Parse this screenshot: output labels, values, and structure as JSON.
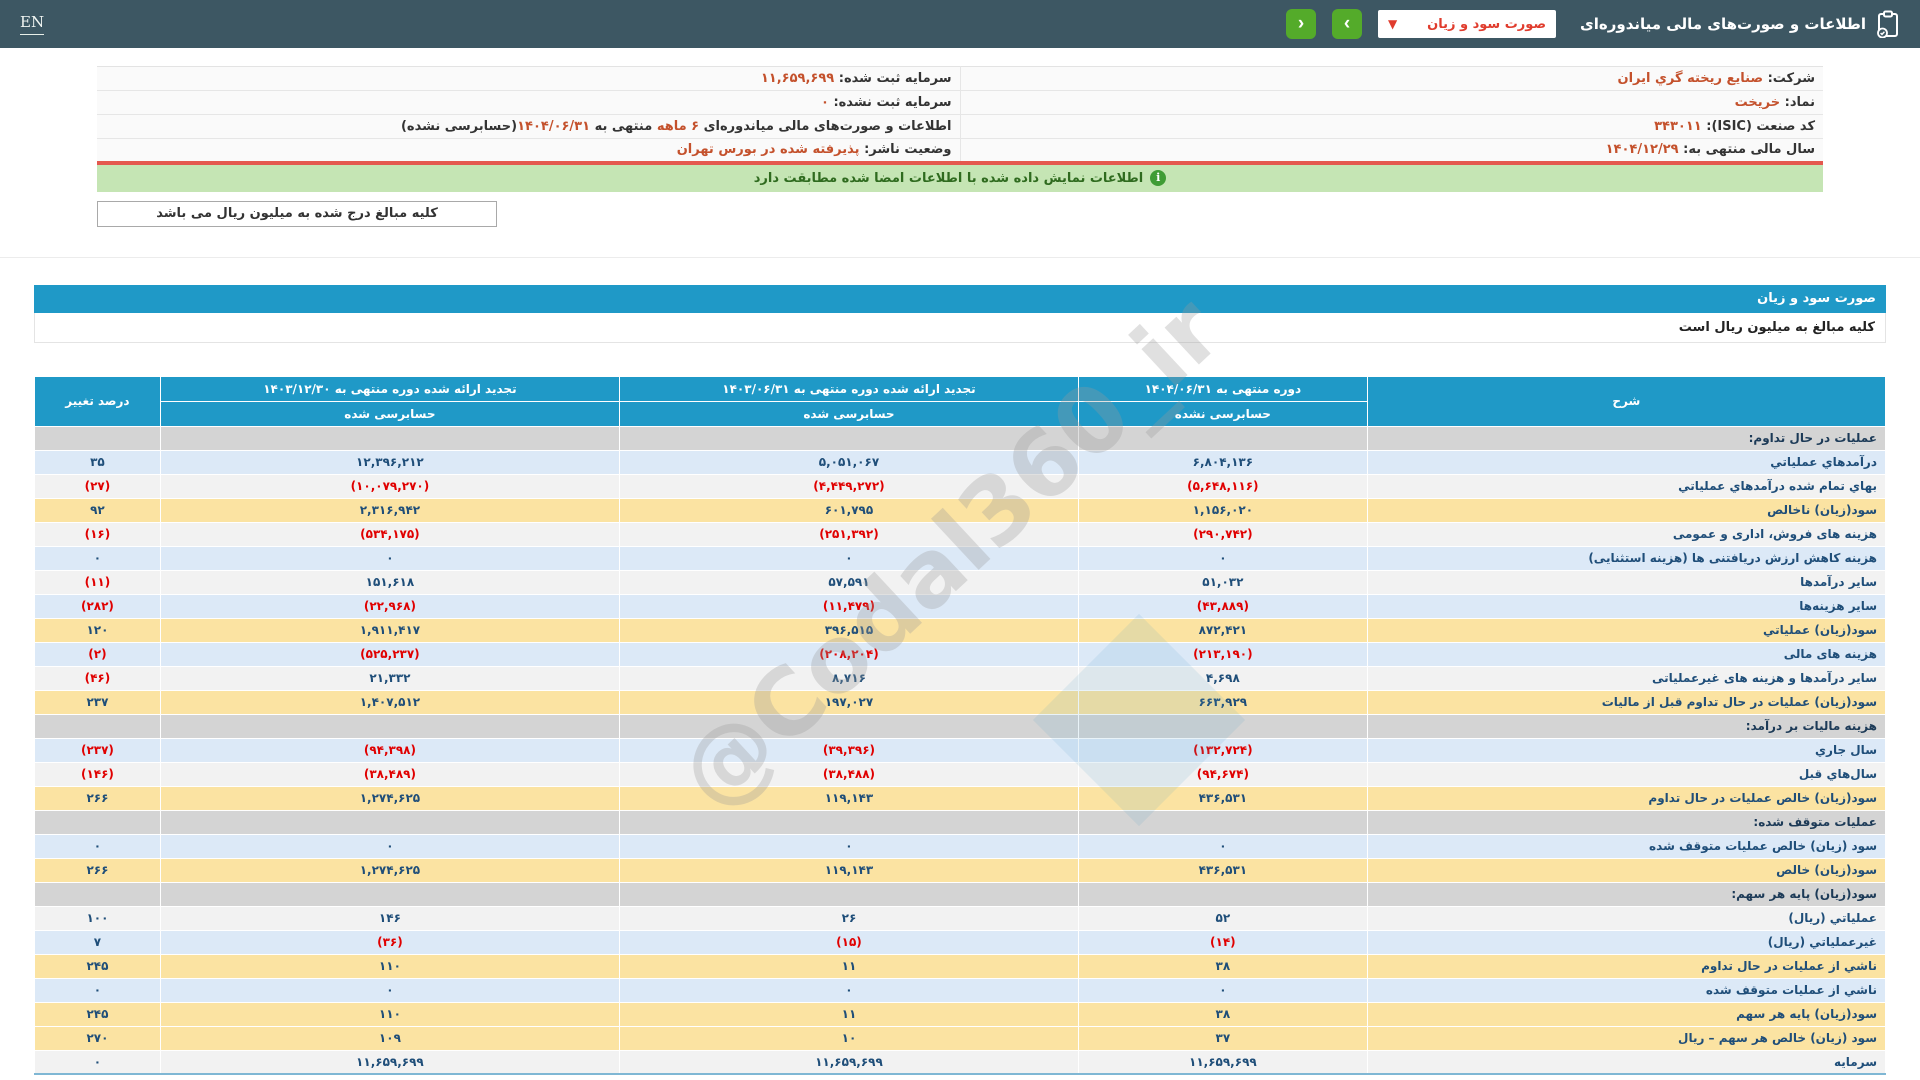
{
  "colors": {
    "topbar": "#3d5763",
    "nav_button_green": "#54ab2a",
    "dropdown_red": "#e03c2d",
    "info_value_orange": "#c4512c",
    "accent_blue": "#1f99c7",
    "row_blue": "#dce9f7",
    "row_white": "#f2f2f2",
    "row_yellow": "#fbe3a2",
    "row_section_gray": "#d4d4d4",
    "number_navy": "#1f4e79",
    "negative_red": "#e00000",
    "signed_banner_green": "#c5e5b4",
    "red_divider": "#e4584e"
  },
  "topbar": {
    "en_label": "EN",
    "title": "اطلاعات و صورت‌های مالی میاندوره‌ای",
    "dropdown_value": "صورت سود و زیان",
    "chevron": "▼",
    "nav_next": "›",
    "nav_prev": "‹",
    "clipboard_icon": "clipboard-check-icon"
  },
  "info": {
    "rows": [
      {
        "r_label": "شرکت:",
        "r_value": "صنایع ریخته گري ایران",
        "l_label": "سرمایه ثبت شده:",
        "l_value": "۱۱,۶۵۹,۶۹۹"
      },
      {
        "r_label": "نماد:",
        "r_value": "خریخت",
        "l_label": "سرمایه ثبت نشده:",
        "l_value": "۰"
      },
      {
        "r_label": "کد صنعت (ISIC):",
        "r_value": "۳۴۳۰۱۱",
        "l_parts": {
          "p1": "اطلاعات و صورت‌های مالی میاندوره‌ای ",
          "hl1": "۶ ماهه",
          "p2": " منتهی به ",
          "hl2": "۱۴۰۴/۰۶/۳۱",
          "p3": "(حسابرسی نشده)"
        }
      },
      {
        "r_label": "سال مالی منتهی به:",
        "r_value": "۱۴۰۴/۱۲/۲۹",
        "l_label": "وضعیت ناشر:",
        "l_value": "پذیرفته شده در بورس تهران"
      }
    ],
    "signed_note": "اطلاعات نمایش داده شده با اطلاعات امضا شده مطابقت دارد",
    "info_icon": "i",
    "units_button": "کلیه مبالغ درج شده به میلیون ریال می باشد"
  },
  "statement": {
    "title": "صورت سود و زیان",
    "units_note": "کلیه مبالغ به میلیون ریال است",
    "watermark": "@Codal360_ir",
    "table": {
      "col_headers": {
        "desc": "شرح",
        "p1": {
          "l1": "دوره منتهی به ۱۴۰۴/۰۶/۳۱",
          "l2": "حسابرسی نشده"
        },
        "p2": {
          "l1": "تجدید ارائه شده دوره منتهی به ۱۴۰۳/۰۶/۳۱",
          "l2": "حسابرسی شده"
        },
        "p3": {
          "l1": "تجدید ارائه شده دوره منتهی به ۱۴۰۳/۱۲/۳۰",
          "l2": "حسابرسی شده"
        },
        "pct": "درصد تغییر"
      },
      "rows": [
        {
          "type": "section",
          "label": "عملیات در حال تداوم:"
        },
        {
          "type": "data",
          "style": "blue",
          "label": "درآمدهاي عملیاتي",
          "v": [
            "۶,۸۰۴,۱۳۶",
            "۵,۰۵۱,۰۶۷",
            "۱۲,۳۹۶,۲۱۲",
            "۳۵"
          ]
        },
        {
          "type": "data",
          "style": "white",
          "label": "بهاي تمام شده درآمدهاي عملیاتي",
          "v": [
            "(۵,۶۴۸,۱۱۶)",
            "(۴,۴۴۹,۲۷۲)",
            "(۱۰,۰۷۹,۲۷۰)",
            "(۲۷)"
          ]
        },
        {
          "type": "data",
          "style": "yellow",
          "label": "سود(زیان) ناخالص",
          "v": [
            "۱,۱۵۶,۰۲۰",
            "۶۰۱,۷۹۵",
            "۲,۳۱۶,۹۴۲",
            "۹۲"
          ]
        },
        {
          "type": "data",
          "style": "white",
          "label": "هزینه های فروش، اداری و عمومی",
          "v": [
            "(۲۹۰,۷۴۲)",
            "(۲۵۱,۳۹۲)",
            "(۵۳۴,۱۷۵)",
            "(۱۶)"
          ]
        },
        {
          "type": "data",
          "style": "blue",
          "label": "هزینه کاهش ارزش دریافتنی ها (هزینه استثنایی)",
          "v": [
            "۰",
            "۰",
            "۰",
            "۰"
          ]
        },
        {
          "type": "data",
          "style": "white",
          "label": "سایر درآمدها",
          "v": [
            "۵۱,۰۳۲",
            "۵۷,۵۹۱",
            "۱۵۱,۶۱۸",
            "(۱۱)"
          ]
        },
        {
          "type": "data",
          "style": "blue",
          "label": "سایر هزینه‌ها",
          "v": [
            "(۴۳,۸۸۹)",
            "(۱۱,۴۷۹)",
            "(۲۲,۹۶۸)",
            "(۲۸۲)"
          ]
        },
        {
          "type": "data",
          "style": "yellow",
          "label": "سود(زیان) عملیاتي",
          "v": [
            "۸۷۲,۴۲۱",
            "۳۹۶,۵۱۵",
            "۱,۹۱۱,۴۱۷",
            "۱۲۰"
          ]
        },
        {
          "type": "data",
          "style": "blue",
          "label": "هزینه های مالی",
          "v": [
            "(۲۱۳,۱۹۰)",
            "(۲۰۸,۲۰۴)",
            "(۵۲۵,۲۳۷)",
            "(۲)"
          ]
        },
        {
          "type": "data",
          "style": "white",
          "label": "سایر درآمدها و هزینه های غیرعملیاتی",
          "v": [
            "۴,۶۹۸",
            "۸,۷۱۶",
            "۲۱,۳۳۲",
            "(۴۶)"
          ]
        },
        {
          "type": "data",
          "style": "yellow",
          "label": "سود(زیان) عملیات در حال تداوم قبل از مالیات",
          "v": [
            "۶۶۳,۹۲۹",
            "۱۹۷,۰۲۷",
            "۱,۴۰۷,۵۱۲",
            "۲۳۷"
          ]
        },
        {
          "type": "section",
          "label": "هزینه مالیات بر درآمد:"
        },
        {
          "type": "data",
          "style": "blue",
          "label": "سال جاري",
          "v": [
            "(۱۳۲,۷۲۴)",
            "(۳۹,۳۹۶)",
            "(۹۴,۳۹۸)",
            "(۲۳۷)"
          ]
        },
        {
          "type": "data",
          "style": "white",
          "label": "سال‌هاي قبل",
          "v": [
            "(۹۴,۶۷۴)",
            "(۳۸,۴۸۸)",
            "(۳۸,۴۸۹)",
            "(۱۴۶)"
          ]
        },
        {
          "type": "data",
          "style": "yellow",
          "label": "سود(زیان) خالص عملیات در حال تداوم",
          "v": [
            "۴۳۶,۵۳۱",
            "۱۱۹,۱۴۳",
            "۱,۲۷۴,۶۲۵",
            "۲۶۶"
          ]
        },
        {
          "type": "section",
          "label": "عملیات متوقف شده:"
        },
        {
          "type": "data",
          "style": "blue",
          "label": "سود (زیان) خالص عملیات متوقف شده",
          "v": [
            "۰",
            "۰",
            "۰",
            "۰"
          ]
        },
        {
          "type": "data",
          "style": "yellow",
          "label": "سود(زیان) خالص",
          "v": [
            "۴۳۶,۵۳۱",
            "۱۱۹,۱۴۳",
            "۱,۲۷۴,۶۲۵",
            "۲۶۶"
          ]
        },
        {
          "type": "section",
          "label": "سود(زیان) پایه هر سهم:"
        },
        {
          "type": "data",
          "style": "white",
          "label": "عملیاتي (ریال)",
          "v": [
            "۵۲",
            "۲۶",
            "۱۴۶",
            "۱۰۰"
          ]
        },
        {
          "type": "data",
          "style": "blue",
          "label": "غیرعملیاتي (ریال)",
          "v": [
            "(۱۴)",
            "(۱۵)",
            "(۳۶)",
            "۷"
          ]
        },
        {
          "type": "data",
          "style": "yellow",
          "label": "ناشي از عملیات در حال تداوم",
          "v": [
            "۳۸",
            "۱۱",
            "۱۱۰",
            "۲۴۵"
          ]
        },
        {
          "type": "data",
          "style": "blue",
          "label": "ناشي از عملیات متوقف شده",
          "v": [
            "۰",
            "۰",
            "۰",
            "۰"
          ]
        },
        {
          "type": "data",
          "style": "yellow",
          "label": "سود(زیان) پایه هر سهم",
          "v": [
            "۳۸",
            "۱۱",
            "۱۱۰",
            "۲۴۵"
          ]
        },
        {
          "type": "data",
          "style": "yellow",
          "label": "سود (زیان) خالص هر سهم – ریال",
          "v": [
            "۳۷",
            "۱۰",
            "۱۰۹",
            "۲۷۰"
          ]
        },
        {
          "type": "data",
          "style": "white",
          "label": "سرمایه",
          "v": [
            "۱۱,۶۵۹,۶۹۹",
            "۱۱,۶۵۹,۶۹۹",
            "۱۱,۶۵۹,۶۹۹",
            "۰"
          ]
        }
      ]
    }
  }
}
